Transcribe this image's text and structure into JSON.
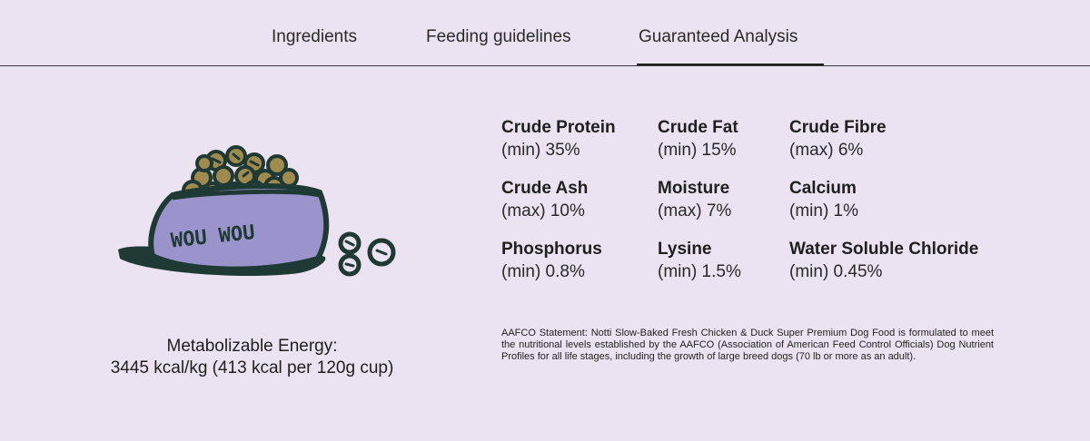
{
  "tabs": [
    {
      "label": "Ingredients",
      "active": false
    },
    {
      "label": "Feeding guidelines",
      "active": false
    },
    {
      "label": "Guaranteed Analysis",
      "active": true
    }
  ],
  "bowl": {
    "text": "WOU WOU",
    "colors": {
      "bowl": "#9a93cc",
      "outline": "#1f3a34",
      "kibble": "#a08a4e"
    }
  },
  "energy": {
    "label": "Metabolizable Energy:",
    "value": "3445 kcal/kg (413 kcal per 120g cup)"
  },
  "analysis": [
    {
      "name": "Crude Protein",
      "value": "(min) 35%"
    },
    {
      "name": "Crude Fat",
      "value": "(min) 15%"
    },
    {
      "name": "Crude Fibre",
      "value": "(max) 6%"
    },
    {
      "name": "Crude Ash",
      "value": "(max) 10%"
    },
    {
      "name": "Moisture",
      "value": "(max) 7%"
    },
    {
      "name": "Calcium",
      "value": "(min) 1%"
    },
    {
      "name": "Phosphorus",
      "value": "(min) 0.8%"
    },
    {
      "name": "Lysine",
      "value": "(min) 1.5%"
    },
    {
      "name": "Water Soluble Chloride",
      "value": "(min) 0.45%"
    }
  ],
  "aafco": "AAFCO Statement: Notti Slow-Baked Fresh Chicken & Duck Super Premium Dog Food is formulated to meet the nutritional levels established by the AAFCO (Association of American Feed Control Officials) Dog Nutrient Profiles for all life stages, including the growth of large breed dogs (70 lb or more as an adult)."
}
